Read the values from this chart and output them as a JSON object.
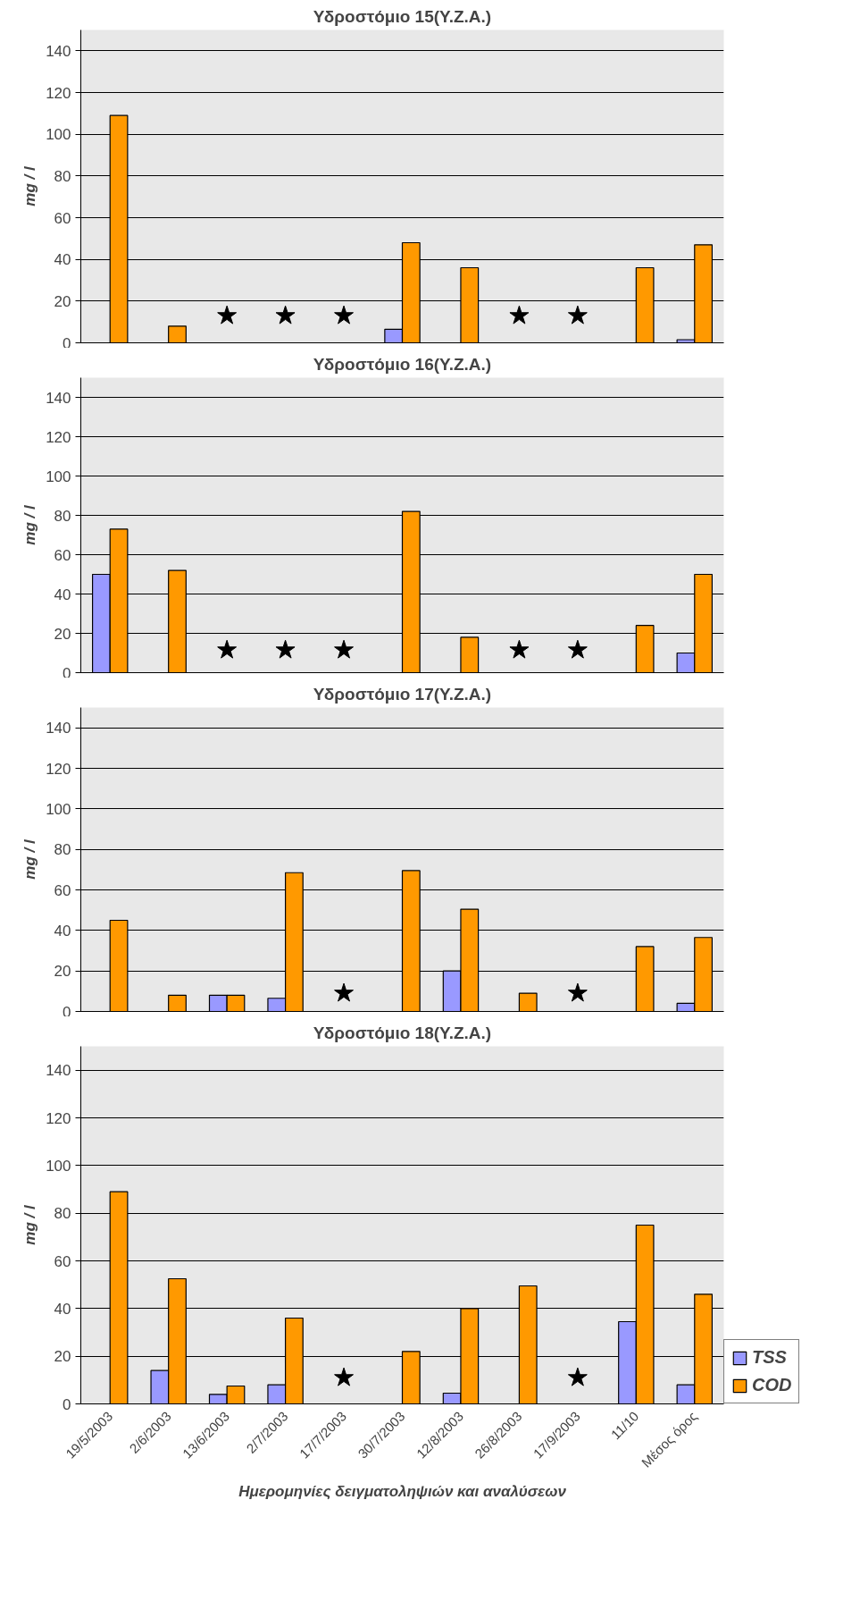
{
  "chart_data": [
    {
      "type": "bar",
      "title": "Υδροστόμιο 15(Υ.Ζ.Α.)",
      "ylabel": "mg / l",
      "categories": [
        null,
        null,
        null,
        null,
        null,
        null,
        null,
        null,
        null,
        null,
        null
      ],
      "ylim": [
        0,
        150
      ],
      "yticks": [
        0,
        20,
        40,
        60,
        80,
        100,
        120,
        140
      ],
      "grid": "y",
      "tick_labels": "y",
      "series": [
        {
          "color": "#9999ff",
          "values": [
            null,
            null,
            null,
            null,
            null,
            6.5,
            null,
            null,
            null,
            null,
            1.5
          ]
        },
        {
          "color": "#ff9900",
          "values": [
            109,
            8,
            null,
            null,
            null,
            48,
            36,
            null,
            null,
            36,
            47
          ]
        },
        {
          "type": "scatter",
          "marker": "star",
          "color": "#000000",
          "values": [
            null,
            null,
            13,
            13,
            13,
            null,
            null,
            13,
            13,
            null,
            null
          ]
        }
      ]
    },
    {
      "type": "bar",
      "title": "Υδροστόμιο 16(Υ.Ζ.Α.)",
      "ylabel": "mg / l",
      "categories": [
        null,
        null,
        null,
        null,
        null,
        null,
        null,
        null,
        null,
        null,
        null
      ],
      "ylim": [
        0,
        150
      ],
      "yticks": [
        0,
        20,
        40,
        60,
        80,
        100,
        120,
        140
      ],
      "grid": "y",
      "tick_labels": "y",
      "series": [
        {
          "color": "#9999ff",
          "values": [
            50,
            null,
            null,
            null,
            null,
            null,
            null,
            null,
            null,
            null,
            10
          ]
        },
        {
          "color": "#ff9900",
          "values": [
            73,
            52,
            null,
            null,
            null,
            82,
            18,
            null,
            null,
            24,
            50
          ]
        },
        {
          "type": "scatter",
          "marker": "star",
          "color": "#000000",
          "values": [
            null,
            null,
            11.5,
            11.5,
            11.5,
            null,
            null,
            11.5,
            11.5,
            null,
            null
          ]
        }
      ]
    },
    {
      "type": "bar",
      "title": "Υδροστόμιο 17(Υ.Ζ.Α.)",
      "ylabel": "mg / l",
      "categories": [
        null,
        null,
        null,
        null,
        null,
        null,
        null,
        null,
        null,
        null,
        null
      ],
      "ylim": [
        0,
        150
      ],
      "yticks": [
        0,
        20,
        40,
        60,
        80,
        100,
        120,
        140
      ],
      "grid": "y",
      "tick_labels": "y",
      "series": [
        {
          "color": "#9999ff",
          "values": [
            null,
            null,
            8,
            6.5,
            null,
            null,
            20,
            null,
            null,
            null,
            4
          ]
        },
        {
          "color": "#ff9900",
          "values": [
            45,
            8,
            8,
            68.5,
            null,
            69.5,
            50.5,
            9,
            null,
            32,
            36.5
          ]
        },
        {
          "type": "scatter",
          "marker": "star",
          "color": "#000000",
          "values": [
            null,
            null,
            null,
            null,
            9,
            null,
            null,
            null,
            9,
            null,
            null
          ]
        }
      ]
    },
    {
      "type": "bar",
      "title": "Υδροστόμιο 18(Υ.Ζ.Α.)",
      "ylabel": "mg / l",
      "xlabel": "Ημερομηνίες δειγματοληψιών και αναλύσεων",
      "categories": [
        "19/5/2003",
        "2/6/2003",
        "13/6/2003",
        "2/7/2003",
        "17/7/2003",
        "30/7/2003",
        "12/8/2003",
        "26/8/2003",
        "17/9/2003",
        "11/10",
        "Μέσος όρος"
      ],
      "ylim": [
        0,
        150
      ],
      "yticks": [
        0,
        20,
        40,
        60,
        80,
        100,
        120,
        140
      ],
      "grid": "y",
      "legend": "bottom right",
      "series": [
        {
          "name": "TSS",
          "color": "#9999ff",
          "values": [
            null,
            14,
            4,
            8,
            null,
            null,
            4.5,
            null,
            null,
            34.5,
            8
          ]
        },
        {
          "name": "COD",
          "color": "#ff9900",
          "values": [
            89,
            52.5,
            7.5,
            36,
            null,
            22,
            40,
            49.5,
            null,
            75,
            46
          ]
        },
        {
          "type": "scatter",
          "marker": "star",
          "color": "#000000",
          "values": [
            null,
            null,
            null,
            null,
            11,
            null,
            null,
            null,
            11,
            null,
            null
          ]
        }
      ]
    }
  ]
}
